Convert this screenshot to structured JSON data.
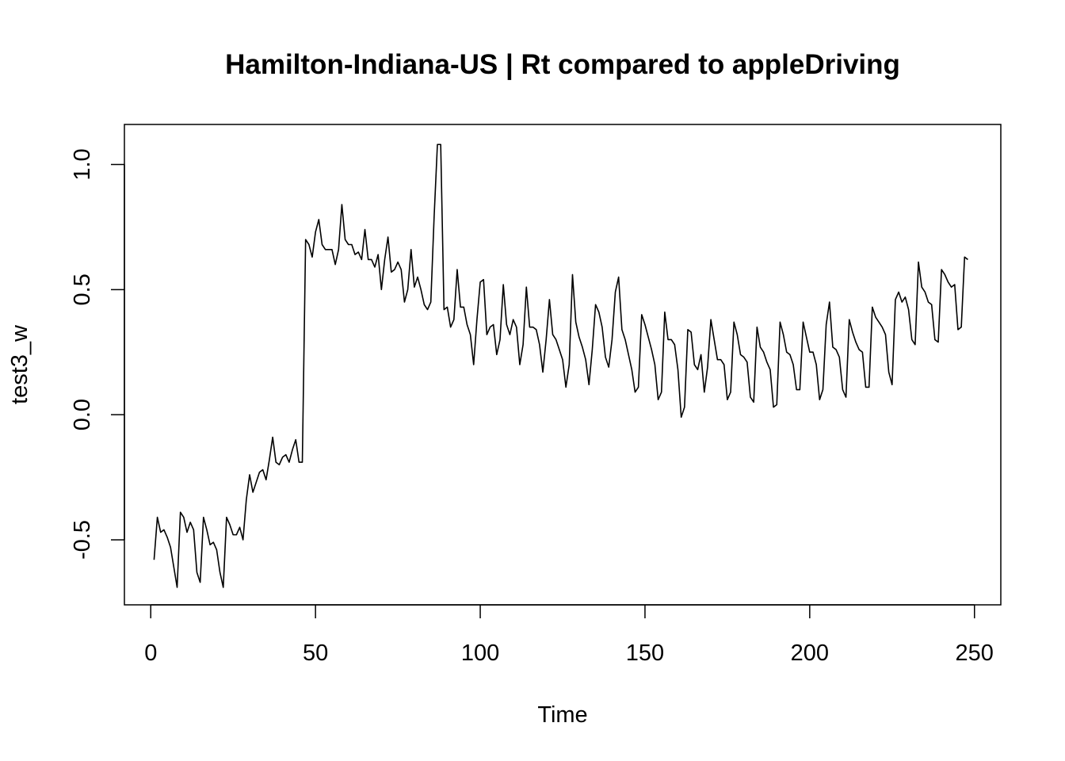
{
  "chart_data": {
    "type": "line",
    "title": "Hamilton-Indiana-US | Rt compared to appleDriving",
    "xlabel": "Time",
    "ylabel": "test3_w",
    "xlim": [
      -8,
      258
    ],
    "ylim": [
      -0.76,
      1.16
    ],
    "x_ticks": [
      0,
      50,
      100,
      150,
      200,
      250
    ],
    "x_tick_labels": [
      "0",
      "50",
      "100",
      "150",
      "200",
      "250"
    ],
    "y_ticks": [
      -0.5,
      0.0,
      0.5,
      1.0
    ],
    "y_tick_labels": [
      "-0.5",
      "0.0",
      "0.5",
      "1.0"
    ],
    "grid": false,
    "legend": "none",
    "series_color": "#000000",
    "x_start": 1,
    "y": [
      -0.58,
      -0.41,
      -0.47,
      -0.46,
      -0.49,
      -0.53,
      -0.61,
      -0.69,
      -0.39,
      -0.41,
      -0.47,
      -0.43,
      -0.46,
      -0.63,
      -0.67,
      -0.41,
      -0.46,
      -0.52,
      -0.51,
      -0.54,
      -0.63,
      -0.69,
      -0.41,
      -0.44,
      -0.48,
      -0.48,
      -0.45,
      -0.5,
      -0.34,
      -0.24,
      -0.31,
      -0.27,
      -0.23,
      -0.22,
      -0.26,
      -0.18,
      -0.09,
      -0.19,
      -0.2,
      -0.17,
      -0.16,
      -0.19,
      -0.14,
      -0.1,
      -0.19,
      -0.19,
      0.7,
      0.68,
      0.63,
      0.73,
      0.78,
      0.68,
      0.66,
      0.66,
      0.66,
      0.6,
      0.66,
      0.84,
      0.7,
      0.68,
      0.68,
      0.64,
      0.65,
      0.62,
      0.74,
      0.62,
      0.62,
      0.59,
      0.64,
      0.5,
      0.62,
      0.71,
      0.57,
      0.58,
      0.61,
      0.58,
      0.45,
      0.5,
      0.66,
      0.51,
      0.55,
      0.5,
      0.44,
      0.42,
      0.45,
      0.79,
      1.08,
      1.08,
      0.42,
      0.43,
      0.35,
      0.38,
      0.58,
      0.43,
      0.43,
      0.36,
      0.32,
      0.2,
      0.38,
      0.53,
      0.54,
      0.32,
      0.35,
      0.36,
      0.24,
      0.3,
      0.52,
      0.36,
      0.32,
      0.38,
      0.35,
      0.2,
      0.28,
      0.51,
      0.35,
      0.35,
      0.34,
      0.28,
      0.17,
      0.3,
      0.46,
      0.32,
      0.3,
      0.26,
      0.22,
      0.11,
      0.2,
      0.56,
      0.37,
      0.31,
      0.27,
      0.22,
      0.12,
      0.26,
      0.44,
      0.41,
      0.35,
      0.23,
      0.19,
      0.3,
      0.49,
      0.55,
      0.34,
      0.3,
      0.24,
      0.18,
      0.09,
      0.11,
      0.4,
      0.36,
      0.31,
      0.26,
      0.2,
      0.06,
      0.09,
      0.41,
      0.3,
      0.3,
      0.28,
      0.18,
      -0.01,
      0.03,
      0.34,
      0.33,
      0.2,
      0.18,
      0.24,
      0.09,
      0.19,
      0.38,
      0.3,
      0.22,
      0.22,
      0.2,
      0.06,
      0.09,
      0.37,
      0.32,
      0.24,
      0.23,
      0.21,
      0.07,
      0.05,
      0.35,
      0.27,
      0.25,
      0.21,
      0.18,
      0.03,
      0.04,
      0.37,
      0.32,
      0.25,
      0.24,
      0.2,
      0.1,
      0.1,
      0.37,
      0.31,
      0.25,
      0.25,
      0.2,
      0.06,
      0.1,
      0.36,
      0.45,
      0.27,
      0.26,
      0.23,
      0.1,
      0.07,
      0.38,
      0.33,
      0.29,
      0.26,
      0.25,
      0.11,
      0.11,
      0.43,
      0.39,
      0.37,
      0.35,
      0.32,
      0.17,
      0.12,
      0.46,
      0.49,
      0.45,
      0.47,
      0.42,
      0.3,
      0.28,
      0.61,
      0.51,
      0.49,
      0.45,
      0.44,
      0.3,
      0.29,
      0.58,
      0.56,
      0.53,
      0.51,
      0.52,
      0.34,
      0.35,
      0.63,
      0.62
    ]
  }
}
